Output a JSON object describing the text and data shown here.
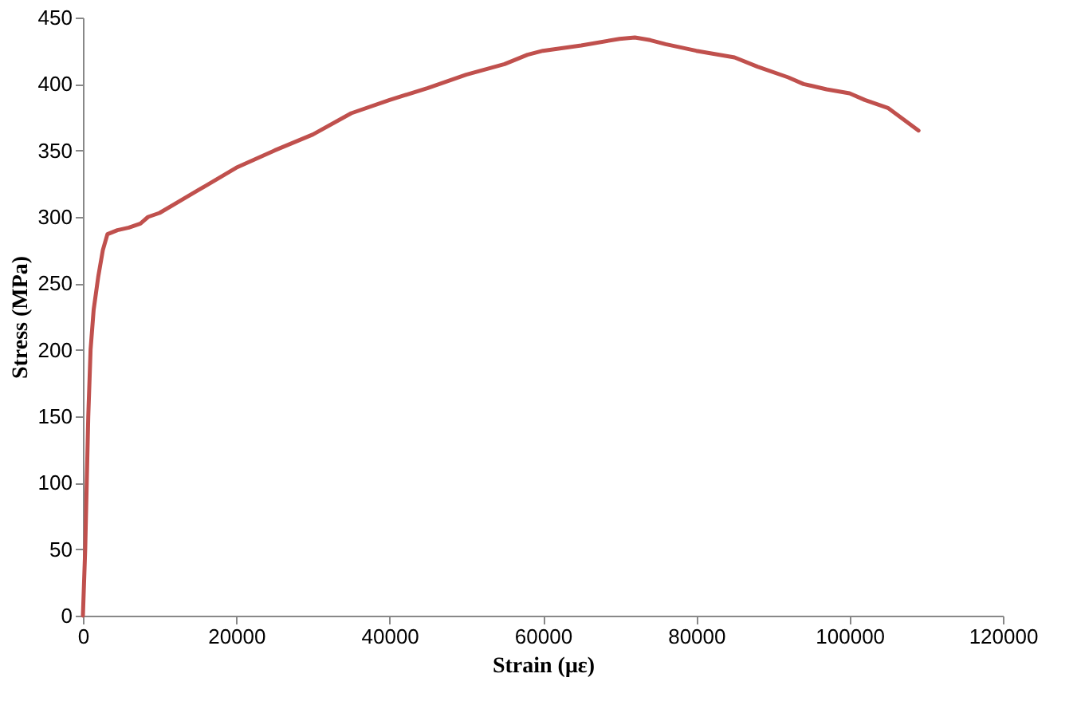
{
  "chart_data": {
    "type": "line",
    "xlabel": "Strain (με)",
    "ylabel": "Stress (MPa)",
    "xlim": [
      0,
      120000
    ],
    "xticks": [
      0,
      20000,
      40000,
      60000,
      80000,
      100000,
      120000
    ],
    "ylim": [
      0,
      450
    ],
    "yticks": [
      0,
      50,
      100,
      150,
      200,
      250,
      300,
      350,
      400,
      450
    ],
    "grid": false,
    "marker": "none",
    "line_style": "solid",
    "series": [
      {
        "color": "#c0504d",
        "x": [
          0,
          300,
          500,
          700,
          1000,
          1400,
          2000,
          2600,
          3200,
          4500,
          6000,
          7500,
          8500,
          10000,
          15000,
          20000,
          25000,
          30000,
          35000,
          40000,
          45000,
          50000,
          55000,
          58000,
          60000,
          65000,
          70000,
          72000,
          74000,
          76000,
          80000,
          85000,
          88000,
          92000,
          94000,
          97000,
          100000,
          102000,
          105000,
          109000
        ],
        "values": [
          0,
          50,
          100,
          150,
          200,
          230,
          255,
          275,
          287,
          290,
          292,
          295,
          300,
          303,
          320,
          337,
          350,
          362,
          378,
          388,
          397,
          407,
          415,
          422,
          425,
          429,
          434,
          435,
          433,
          430,
          425,
          420,
          413,
          405,
          400,
          396,
          393,
          388,
          382,
          365
        ]
      }
    ]
  }
}
